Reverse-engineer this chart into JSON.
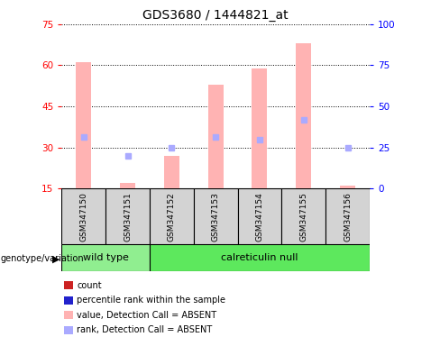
{
  "title": "GDS3680 / 1444821_at",
  "samples": [
    "GSM347150",
    "GSM347151",
    "GSM347152",
    "GSM347153",
    "GSM347154",
    "GSM347155",
    "GSM347156"
  ],
  "ylim_left": [
    15,
    75
  ],
  "ylim_right": [
    0,
    100
  ],
  "yticks_left": [
    15,
    30,
    45,
    60,
    75
  ],
  "yticks_right": [
    0,
    25,
    50,
    75,
    100
  ],
  "bar_values": [
    61,
    17,
    27,
    53,
    59,
    68,
    16
  ],
  "rank_values": [
    34,
    27,
    30,
    34,
    33,
    40,
    30
  ],
  "absent_mask": [
    true,
    true,
    true,
    true,
    true,
    true,
    true
  ],
  "bar_color_normal": "#cc2222",
  "bar_color_absent": "#ffb3b3",
  "rank_color_normal": "#2222cc",
  "rank_color_absent": "#aaaaff",
  "groups": [
    {
      "label": "wild type",
      "start": 0,
      "end": 2,
      "color": "#90ee90"
    },
    {
      "label": "calreticulin null",
      "start": 2,
      "end": 7,
      "color": "#5de85d"
    }
  ],
  "group_row_label": "genotype/variation",
  "legend_items": [
    {
      "color": "#cc2222",
      "label": "count"
    },
    {
      "color": "#2222cc",
      "label": "percentile rank within the sample"
    },
    {
      "color": "#ffb3b3",
      "label": "value, Detection Call = ABSENT"
    },
    {
      "color": "#aaaaff",
      "label": "rank, Detection Call = ABSENT"
    }
  ],
  "sample_box_color": "#d3d3d3",
  "bar_width": 0.35
}
